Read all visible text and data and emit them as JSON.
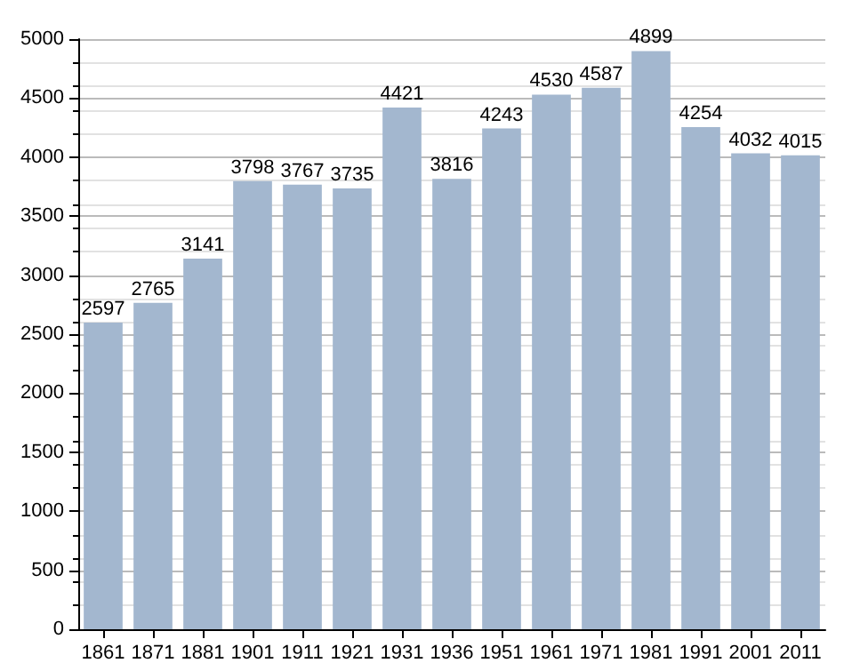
{
  "chart_data": {
    "type": "bar",
    "categories": [
      "1861",
      "1871",
      "1881",
      "1901",
      "1911",
      "1921",
      "1931",
      "1936",
      "1951",
      "1961",
      "1971",
      "1981",
      "1991",
      "2001",
      "2011"
    ],
    "values": [
      2597,
      2765,
      3141,
      3798,
      3767,
      3735,
      4421,
      3816,
      4243,
      4530,
      4587,
      4899,
      4254,
      4032,
      4015
    ],
    "color": "#a3b7cf",
    "ylim": [
      0,
      5000
    ],
    "yticks": [
      0,
      500,
      1000,
      1500,
      2000,
      2500,
      3000,
      3500,
      4000,
      4500,
      5000
    ],
    "grid": "y",
    "data_labels": true
  }
}
